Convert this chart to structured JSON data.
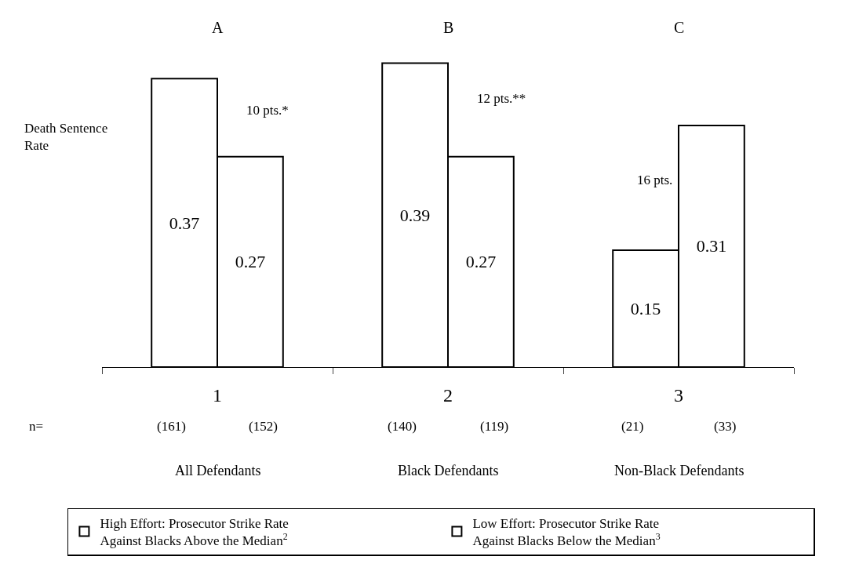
{
  "chart_data": {
    "type": "bar",
    "categories": [
      "1",
      "2",
      "3"
    ],
    "series": [
      {
        "name": "High Effort: Prosecutor Strike Rate Against Blacks Above the Median$^{2}$",
        "color": "#ffffff",
        "values": [
          0.37,
          0.39,
          0.15
        ]
      },
      {
        "name": "Low Effort: Prosecutor Strike Rate Against Blacks Below the Median$^{3}$",
        "color": "#ffffff",
        "values": [
          0.27,
          0.27,
          0.31
        ]
      }
    ],
    "ylabel": "Death Sentence Rate",
    "data_labels": true,
    "tick_labels": "x",
    "legend": "bottom",
    "annotations": [
      "A",
      "B",
      "C",
      "n=",
      "(161)",
      "(152)",
      "(140)",
      "(119)",
      "(21)",
      "(33)",
      "All Defendants",
      "Black Defendants",
      "Non-Black Defendants",
      "10 pts.*",
      "12 pts.**",
      "16 pts."
    ]
  }
}
